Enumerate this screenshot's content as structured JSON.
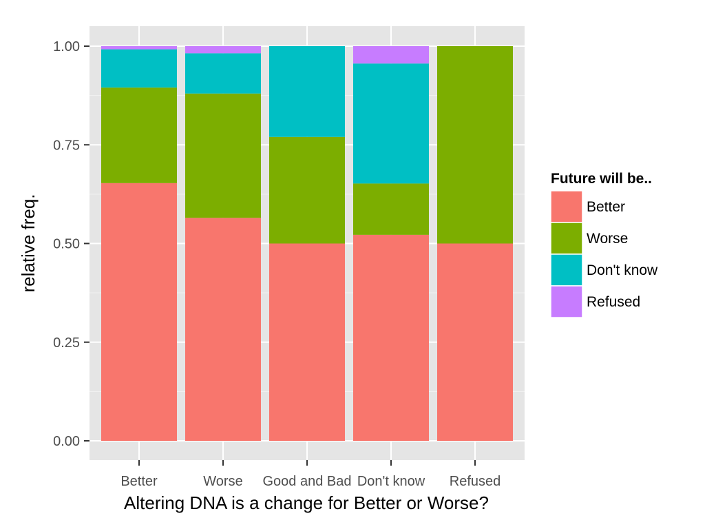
{
  "chart_data": {
    "type": "bar",
    "stacked": true,
    "title": "",
    "xlabel": "Altering DNA is a change for Better or Worse?",
    "ylabel": "relative freq.",
    "ylim": [
      0,
      1
    ],
    "yticks": [
      "0.00",
      "0.25",
      "0.50",
      "0.75",
      "1.00"
    ],
    "ytick_values": [
      0,
      0.25,
      0.5,
      0.75,
      1.0
    ],
    "grid": true,
    "legend_position": "right",
    "legend_title": "Future will be..",
    "categories": [
      "Better",
      "Worse",
      "Good and Bad",
      "Don't know",
      "Refused"
    ],
    "series": [
      {
        "name": "Better",
        "color": "#F8766D",
        "values": [
          0.653,
          0.565,
          0.5,
          0.522,
          0.5
        ]
      },
      {
        "name": "Worse",
        "color": "#7CAE00",
        "values": [
          0.242,
          0.315,
          0.27,
          0.13,
          0.5
        ]
      },
      {
        "name": "Don't know",
        "color": "#00BFC4",
        "values": [
          0.097,
          0.102,
          0.23,
          0.304,
          0.0
        ]
      },
      {
        "name": "Refused",
        "color": "#C77CFF",
        "values": [
          0.008,
          0.018,
          0.0,
          0.044,
          0.0
        ]
      }
    ],
    "colors": {
      "panel_background": "#E5E5E5",
      "grid_major": "#FFFFFF",
      "grid_minor": "#F2F2F2",
      "tick_label": "#4D4D4D",
      "axis_title": "#000000"
    }
  }
}
